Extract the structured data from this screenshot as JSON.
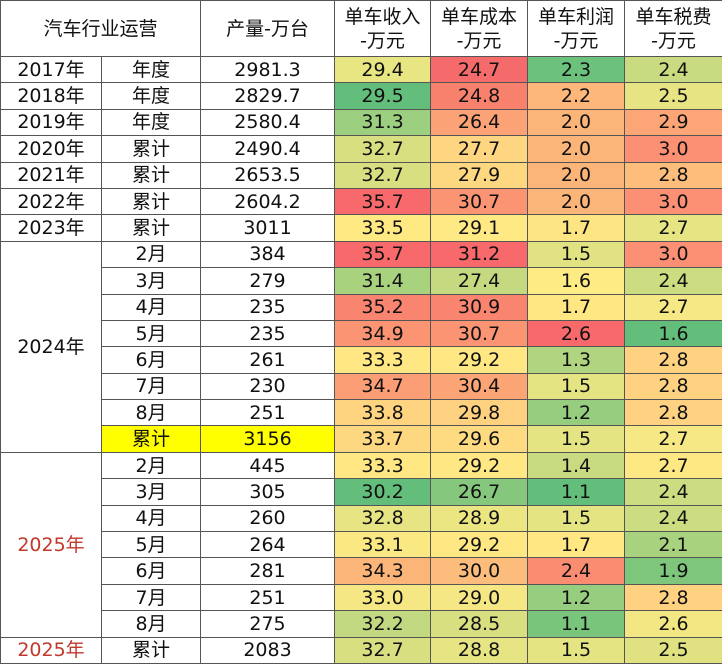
{
  "header": {
    "title": "汽车行业运营",
    "columns": [
      "产量-万台",
      "单车收入\n-万元",
      "单车成本\n-万元",
      "单车利润\n-万元",
      "单车税费\n-万元"
    ]
  },
  "groups": [
    {
      "label": "2017年",
      "rows": [
        {
          "period": "年度",
          "output": "2981.3",
          "cells": [
            "29.4",
            "24.7",
            "2.3",
            "2.4"
          ],
          "colors": [
            "#e8e583",
            "#f56b6b",
            "#6cc17c",
            "#c8db80"
          ]
        }
      ]
    },
    {
      "label": "2018年",
      "rows": [
        {
          "period": "年度",
          "output": "2829.7",
          "cells": [
            "29.5",
            "24.8",
            "2.2",
            "2.5"
          ],
          "colors": [
            "#63be7b",
            "#f8816e",
            "#fdb77a",
            "#e6e483"
          ]
        }
      ]
    },
    {
      "label": "2019年",
      "rows": [
        {
          "period": "年度",
          "output": "2580.4",
          "cells": [
            "31.3",
            "26.4",
            "2.0",
            "2.9"
          ],
          "colors": [
            "#9ccf7f",
            "#fba276",
            "#fcb579",
            "#fca577"
          ]
        }
      ]
    },
    {
      "label": "2020年",
      "rows": [
        {
          "period": "累计",
          "output": "2490.4",
          "cells": [
            "32.7",
            "27.7",
            "2.0",
            "3.0"
          ],
          "colors": [
            "#d7df81",
            "#fed580",
            "#fcb579",
            "#fb9074"
          ]
        }
      ]
    },
    {
      "label": "2021年",
      "rows": [
        {
          "period": "累计",
          "output": "2653.5",
          "cells": [
            "32.7",
            "27.9",
            "2.0",
            "2.8"
          ],
          "colors": [
            "#d7df81",
            "#fed880",
            "#fcb579",
            "#fdbd7b"
          ]
        }
      ]
    },
    {
      "label": "2022年",
      "rows": [
        {
          "period": "累计",
          "output": "2604.2",
          "cells": [
            "35.7",
            "30.7",
            "2.0",
            "3.0"
          ],
          "colors": [
            "#f8696b",
            "#fa9473",
            "#fcb579",
            "#fb9074"
          ]
        }
      ]
    },
    {
      "label": "2023年",
      "rows": [
        {
          "period": "累计",
          "output": "3011",
          "cells": [
            "33.5",
            "29.1",
            "1.7",
            "2.7"
          ],
          "colors": [
            "#fee983",
            "#ffe984",
            "#fee583",
            "#e6e483"
          ]
        }
      ]
    },
    {
      "label": "2024年",
      "rows": [
        {
          "period": "2月",
          "output": "384",
          "cells": [
            "35.7",
            "31.2",
            "1.5",
            "3.0"
          ],
          "colors": [
            "#f8696b",
            "#f8696b",
            "#e1e383",
            "#fb9074"
          ]
        },
        {
          "period": "3月",
          "output": "279",
          "cells": [
            "31.4",
            "27.4",
            "1.6",
            "2.4"
          ],
          "colors": [
            "#a9d27f",
            "#c5da80",
            "#fdeb84",
            "#cbdc81"
          ]
        },
        {
          "period": "4月",
          "output": "235",
          "cells": [
            "35.2",
            "30.9",
            "1.7",
            "2.7"
          ],
          "colors": [
            "#f98570",
            "#f98570",
            "#ffe784",
            "#f6e884"
          ]
        },
        {
          "period": "5月",
          "output": "235",
          "cells": [
            "34.9",
            "30.7",
            "2.6",
            "1.6"
          ],
          "colors": [
            "#fa9473",
            "#fa9473",
            "#f8696b",
            "#63be7b"
          ]
        },
        {
          "period": "6月",
          "output": "261",
          "cells": [
            "33.3",
            "29.2",
            "1.3",
            "2.8"
          ],
          "colors": [
            "#ffe884",
            "#ffe884",
            "#b0d47f",
            "#fed280"
          ]
        },
        {
          "period": "7月",
          "output": "230",
          "cells": [
            "34.7",
            "30.4",
            "1.5",
            "2.8"
          ],
          "colors": [
            "#fb9e75",
            "#fba476",
            "#e5e483",
            "#fed280"
          ]
        },
        {
          "period": "8月",
          "output": "251",
          "cells": [
            "33.8",
            "29.8",
            "1.2",
            "2.8"
          ],
          "colors": [
            "#fed480",
            "#fdd17f",
            "#97cd7e",
            "#fed280"
          ]
        },
        {
          "period": "累计",
          "output": "3156",
          "highlight": "#ffff00",
          "cells": [
            "33.7",
            "29.6",
            "1.5",
            "2.7"
          ],
          "colors": [
            "#fed880",
            "#fedb81",
            "#e5e483",
            "#f6e884"
          ]
        }
      ]
    },
    {
      "label": "2025年",
      "label_color": "#c0392b",
      "rows": [
        {
          "period": "2月",
          "output": "445",
          "cells": [
            "33.3",
            "29.2",
            "1.4",
            "2.7"
          ],
          "colors": [
            "#ffe884",
            "#ffe884",
            "#c9db80",
            "#fde883"
          ]
        },
        {
          "period": "3月",
          "output": "305",
          "cells": [
            "30.2",
            "26.7",
            "1.1",
            "2.4"
          ],
          "colors": [
            "#63be7b",
            "#85c87d",
            "#63be7b",
            "#cbdc81"
          ]
        },
        {
          "period": "4月",
          "output": "260",
          "cells": [
            "32.8",
            "28.9",
            "1.5",
            "2.4"
          ],
          "colors": [
            "#e6e483",
            "#ebe582",
            "#e5e483",
            "#cbdc81"
          ]
        },
        {
          "period": "5月",
          "output": "264",
          "cells": [
            "33.1",
            "29.2",
            "1.7",
            "2.1"
          ],
          "colors": [
            "#fae983",
            "#ffe884",
            "#ffe784",
            "#a9d27f"
          ]
        },
        {
          "period": "6月",
          "output": "281",
          "cells": [
            "34.3",
            "30.0",
            "2.4",
            "1.9"
          ],
          "colors": [
            "#fcb579",
            "#fcbc7b",
            "#fa8c72",
            "#7fc67d"
          ]
        },
        {
          "period": "7月",
          "output": "251",
          "cells": [
            "33.0",
            "29.0",
            "1.2",
            "2.8"
          ],
          "colors": [
            "#f5e884",
            "#f5e884",
            "#97cd7e",
            "#fed280"
          ]
        },
        {
          "period": "8月",
          "output": "275",
          "cells": [
            "32.2",
            "28.5",
            "1.1",
            "2.6"
          ],
          "colors": [
            "#c3d981",
            "#d7df81",
            "#7ac57c",
            "#f3e783"
          ]
        }
      ]
    },
    {
      "label": "2025年",
      "label_color": "#c0392b",
      "rows": [
        {
          "period": "累计",
          "output": "2083",
          "cells": [
            "32.7",
            "28.8",
            "1.5",
            "2.5"
          ],
          "colors": [
            "#d7df81",
            "#e6e483",
            "#e5e483",
            "#e0e282"
          ]
        }
      ]
    }
  ]
}
